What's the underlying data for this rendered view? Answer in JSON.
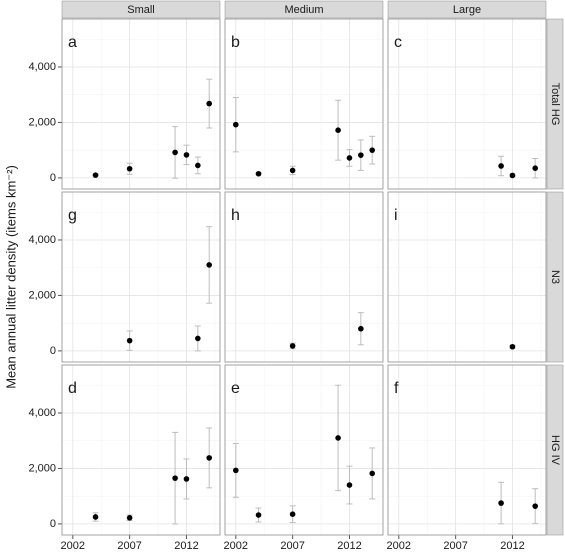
{
  "chart_data": {
    "type": "scatter",
    "ylabel": "Mean annual litter density (items  km⁻²)",
    "columns": [
      "Small",
      "Medium",
      "Large"
    ],
    "rows": [
      "Total HG",
      "N3",
      "HG IV"
    ],
    "xlim": [
      2001.05,
      2014.95
    ],
    "xticks": [
      2002,
      2007,
      2012
    ],
    "xminor": [
      2004.5,
      2009.5,
      2014.5
    ],
    "ylim": [
      -400,
      5730
    ],
    "yticks": [
      0,
      {
        "value": 2000,
        "label": "2,000"
      },
      {
        "value": 4000,
        "label": "4,000"
      }
    ],
    "yminor": [
      1000,
      3000,
      5000
    ],
    "grid": true,
    "color": "#000000",
    "panels": [
      {
        "label": "a",
        "x": [
          2004,
          2007,
          2011,
          2012,
          2013,
          2014
        ],
        "values": [
          100,
          330,
          920,
          830,
          450,
          2680
        ],
        "errors": [
          30,
          200,
          930,
          350,
          300,
          880
        ]
      },
      {
        "label": "b",
        "x": [
          2002,
          2004,
          2007,
          2011,
          2012,
          2013,
          2014
        ],
        "values": [
          1920,
          150,
          270,
          1720,
          720,
          820,
          1000
        ],
        "errors": [
          980,
          30,
          150,
          1080,
          300,
          550,
          500
        ]
      },
      {
        "label": "c",
        "x": [
          2011,
          2012,
          2014
        ],
        "values": [
          430,
          90,
          350
        ],
        "errors": [
          350,
          50,
          350
        ]
      },
      {
        "label": "g",
        "x": [
          2007,
          2013,
          2014
        ],
        "values": [
          370,
          450,
          3100
        ],
        "errors": [
          350,
          450,
          1380
        ]
      },
      {
        "label": "h",
        "x": [
          2007,
          2013
        ],
        "values": [
          180,
          800
        ],
        "errors": [
          100,
          580
        ]
      },
      {
        "label": "i",
        "x": [
          2012
        ],
        "values": [
          150
        ],
        "errors": [
          50
        ]
      },
      {
        "label": "d",
        "x": [
          2004,
          2007,
          2011,
          2012,
          2014
        ],
        "values": [
          250,
          220,
          1650,
          1620,
          2380
        ],
        "errors": [
          150,
          100,
          1650,
          720,
          1080
        ]
      },
      {
        "label": "e",
        "x": [
          2002,
          2004,
          2007,
          2011,
          2012,
          2014
        ],
        "values": [
          1930,
          320,
          350,
          3100,
          1400,
          1820
        ],
        "errors": [
          970,
          250,
          300,
          1900,
          680,
          920
        ]
      },
      {
        "label": "f",
        "x": [
          2011,
          2014
        ],
        "values": [
          750,
          640
        ],
        "errors": [
          750,
          630
        ]
      }
    ]
  }
}
